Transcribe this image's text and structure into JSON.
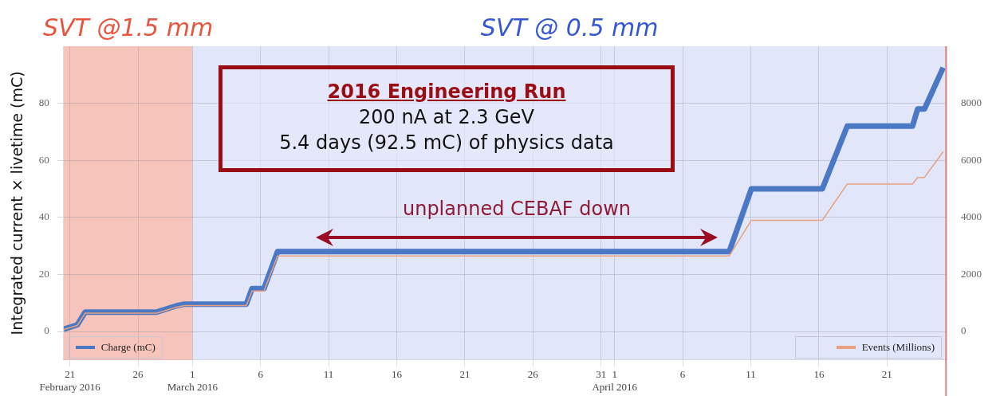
{
  "chart_data": {
    "type": "line",
    "ylabel": "Integrated current × livetime (mC)",
    "xlim": [
      "2016-02-20T13:00",
      "2016-04-25T09:00"
    ],
    "xticks": [
      {
        "value": "2016-02-21",
        "label": "21\nFebruary 2016"
      },
      {
        "value": "2016-02-26",
        "label": "26"
      },
      {
        "value": "2016-03-01",
        "label": "1\nMarch 2016"
      },
      {
        "value": "2016-03-06",
        "label": "6"
      },
      {
        "value": "2016-03-11",
        "label": "11"
      },
      {
        "value": "2016-03-16",
        "label": "16"
      },
      {
        "value": "2016-03-21",
        "label": "21"
      },
      {
        "value": "2016-03-26",
        "label": "26"
      },
      {
        "value": "2016-03-31",
        "label": "31"
      },
      {
        "value": "2016-04-01",
        "label": "1\nApril 2016"
      },
      {
        "value": "2016-04-06",
        "label": "6"
      },
      {
        "value": "2016-04-11",
        "label": "11"
      },
      {
        "value": "2016-04-16",
        "label": "16"
      },
      {
        "value": "2016-04-21",
        "label": "21"
      }
    ],
    "ylim": [
      -10,
      100
    ],
    "yticks": [
      0,
      20,
      40,
      60,
      80
    ],
    "y2lim": [
      -1000,
      10000
    ],
    "y2ticks": [
      0,
      2000,
      4000,
      6000,
      8000
    ],
    "grid": true,
    "legend": "bottom",
    "series": [
      {
        "name": "Charge (mC)",
        "color": "#4a78c4",
        "x": [
          "2016-02-20T13:00",
          "2016-02-21T13:00",
          "2016-02-22T03:00",
          "2016-02-27T09:00",
          "2016-02-28T20:00",
          "2016-02-29T10:00",
          "2016-03-04T23:00",
          "2016-03-05T09:00",
          "2016-03-06T06:00",
          "2016-03-07T06:00",
          "2016-04-09T10:00",
          "2016-04-11T01:00",
          "2016-04-16T06:00",
          "2016-04-18T02:00",
          "2016-04-22T21:00",
          "2016-04-23T06:00",
          "2016-04-23T18:00",
          "2016-04-25T03:00"
        ],
        "values": [
          0.8,
          2.3,
          6.8,
          6.8,
          9,
          9.6,
          9.6,
          15,
          15,
          28,
          28,
          50,
          50,
          72,
          72,
          78,
          78,
          92.5
        ]
      },
      {
        "name": "Events (Millions)",
        "color": "#e8a080",
        "axis": "y2",
        "x": [
          "2016-02-20T13:00",
          "2016-02-21T13:00",
          "2016-02-22T03:00",
          "2016-02-27T09:00",
          "2016-02-28T20:00",
          "2016-02-29T10:00",
          "2016-03-04T23:00",
          "2016-03-05T09:00",
          "2016-03-06T06:00",
          "2016-03-07T06:00",
          "2016-04-09T10:00",
          "2016-04-11T01:00",
          "2016-04-16T06:00",
          "2016-04-18T02:00",
          "2016-04-22T21:00",
          "2016-04-23T06:00",
          "2016-04-23T18:00",
          "2016-04-25T03:00"
        ],
        "values": [
          70,
          210,
          640,
          640,
          850,
          910,
          910,
          1420,
          1420,
          2650,
          2650,
          3900,
          3900,
          5170,
          5170,
          5400,
          5400,
          6300
        ]
      }
    ],
    "bands": [
      {
        "axis": "x",
        "from": "2016-02-20T13:00",
        "to": "2016-03-01",
        "label": "SVT @1.5 mm",
        "color": "#e8553e"
      },
      {
        "axis": "x",
        "from": "2016-03-01",
        "to": "2016-04-25T09:00",
        "label": "SVT @ 0.5 mm",
        "color": "#3557d6"
      }
    ],
    "ref_lines": [
      {
        "axis": "x",
        "value": "2016-04-25T08:00",
        "color": "#e88080"
      }
    ],
    "annotations": [
      "2016 Engineering Run",
      "200 nA at 2.3 GeV",
      "5.4 days (92.5 mC) of physics data",
      "unplanned CEBAF down"
    ]
  }
}
